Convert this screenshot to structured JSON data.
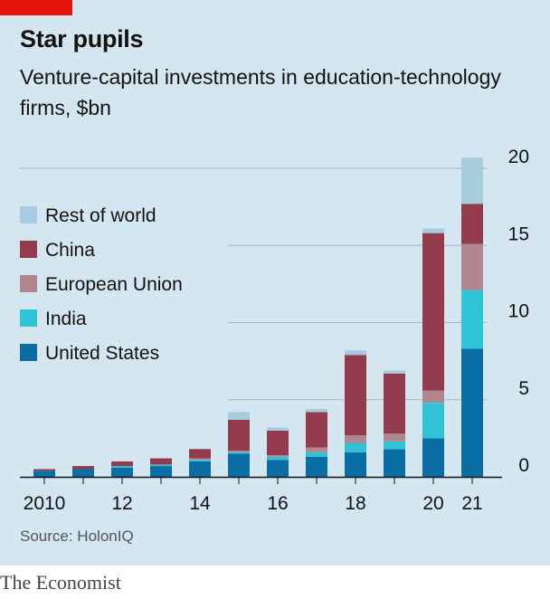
{
  "header": {
    "title": "Star pupils",
    "subtitle": "Venture-capital investments in education-technology firms, $bn"
  },
  "footer": {
    "source": "Source: HolonIQ",
    "brand": "The Economist"
  },
  "colors": {
    "background": "#d4e6ef",
    "accent": "#e3120b",
    "gridline": "#a7b7c1",
    "axis": "#121212"
  },
  "chart_data": {
    "type": "bar",
    "stacked": true,
    "categories": [
      "2010",
      "11",
      "12",
      "13",
      "14",
      "15",
      "16",
      "17",
      "18",
      "19",
      "20",
      "21"
    ],
    "x_tick_labels": [
      "2010",
      "",
      "12",
      "",
      "14",
      "",
      "16",
      "",
      "18",
      "",
      "20",
      "21"
    ],
    "y_ticks": [
      0,
      5,
      10,
      15,
      20
    ],
    "ylim": [
      0,
      21
    ],
    "grid": true,
    "legend_position": "left",
    "series": [
      {
        "name": "United States",
        "color": "#0a6da4",
        "values": [
          0.4,
          0.5,
          0.6,
          0.7,
          1.0,
          1.5,
          1.1,
          1.3,
          1.6,
          1.8,
          2.5,
          8.3
        ]
      },
      {
        "name": "India",
        "color": "#2ec4d6",
        "values": [
          0.0,
          0.0,
          0.1,
          0.1,
          0.1,
          0.1,
          0.2,
          0.3,
          0.6,
          0.5,
          2.3,
          3.8
        ]
      },
      {
        "name": "European Union",
        "color": "#b0868f",
        "values": [
          0.0,
          0.0,
          0.0,
          0.0,
          0.1,
          0.1,
          0.1,
          0.3,
          0.5,
          0.5,
          0.8,
          3.0
        ]
      },
      {
        "name": "China",
        "color": "#933b4d",
        "values": [
          0.1,
          0.2,
          0.3,
          0.4,
          0.6,
          2.0,
          1.6,
          2.3,
          5.2,
          3.9,
          10.2,
          2.6
        ]
      },
      {
        "name": "Rest of world",
        "color": "#a8ccdf",
        "values": [
          0.0,
          0.0,
          0.0,
          0.0,
          0.0,
          0.5,
          0.2,
          0.2,
          0.3,
          0.2,
          0.3,
          3.0
        ]
      }
    ],
    "legend_order": [
      "Rest of world",
      "China",
      "European Union",
      "India",
      "United States"
    ]
  }
}
